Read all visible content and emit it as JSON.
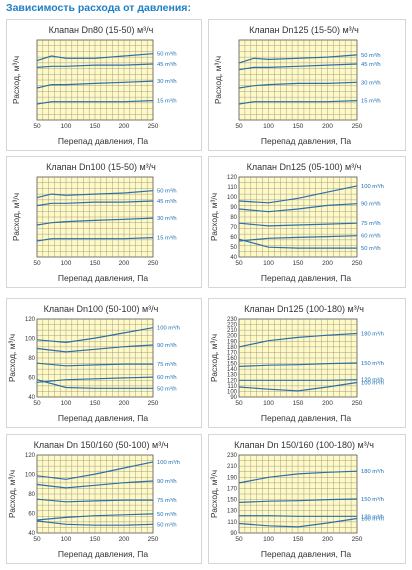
{
  "page_title": "Зависимость расхода от давления:",
  "axis_common": {
    "xlabel": "Перепад давления, Па",
    "ylabel": "Расход, м³/ч"
  },
  "colors": {
    "plot_bg": "#fff9c4",
    "grid": "#8a8a8a",
    "curve": "#2d6fa8",
    "label": "#1f6fb3",
    "title_text": "#333333",
    "page_title": "#1f7fc4"
  },
  "chart_data": [
    {
      "type": "line",
      "title": "Клапан Dn80 (15-50) м³/ч",
      "xlabel": "Перепад давления, Па",
      "ylabel": "Расход, м³/ч",
      "xlim": [
        50,
        250
      ],
      "ylim": [
        0,
        70
      ],
      "xticks": [
        "50",
        "100",
        "150",
        "200",
        "250"
      ],
      "yticks": [],
      "grid": true,
      "series": [
        {
          "name": "50 m³/h",
          "x": [
            50,
            75,
            100,
            150,
            200,
            250
          ],
          "y": [
            52,
            56,
            54,
            54,
            56,
            58
          ]
        },
        {
          "name": "45 m³/h",
          "x": [
            50,
            75,
            100,
            150,
            200,
            250
          ],
          "y": [
            46,
            47,
            47,
            48,
            48,
            49
          ]
        },
        {
          "name": "30 m³/h",
          "x": [
            50,
            75,
            100,
            150,
            200,
            250
          ],
          "y": [
            28,
            31,
            31,
            32,
            33,
            34
          ]
        },
        {
          "name": "15 m³/h",
          "x": [
            50,
            75,
            100,
            150,
            200,
            250
          ],
          "y": [
            14,
            16,
            16,
            16,
            16,
            17
          ]
        }
      ]
    },
    {
      "type": "line",
      "title": "Клапан Dn125 (15-50) м³/ч",
      "xlabel": "Перепад давления, Па",
      "ylabel": "Расход, м³/ч",
      "xlim": [
        50,
        250
      ],
      "ylim": [
        0,
        70
      ],
      "xticks": [
        "50",
        "100",
        "150",
        "200",
        "250"
      ],
      "yticks": [],
      "grid": true,
      "series": [
        {
          "name": "50 m³/h",
          "x": [
            50,
            75,
            100,
            150,
            200,
            250
          ],
          "y": [
            50,
            54,
            53,
            54,
            55,
            57
          ]
        },
        {
          "name": "45 m³/h",
          "x": [
            50,
            75,
            100,
            150,
            200,
            250
          ],
          "y": [
            44,
            46,
            46,
            47,
            48,
            49
          ]
        },
        {
          "name": "30 m³/h",
          "x": [
            50,
            75,
            100,
            150,
            200,
            250
          ],
          "y": [
            28,
            30,
            31,
            32,
            32,
            33
          ]
        },
        {
          "name": "15 m³/h",
          "x": [
            50,
            75,
            100,
            150,
            200,
            250
          ],
          "y": [
            14,
            16,
            16,
            16,
            16,
            17
          ]
        }
      ]
    },
    {
      "type": "line",
      "title": "Клапан Dn100 (15-50) м³/ч",
      "xlabel": "Перепад давления, Па",
      "ylabel": "Расход, м³/ч",
      "xlim": [
        50,
        250
      ],
      "ylim": [
        0,
        70
      ],
      "xticks": [
        "50",
        "100",
        "150",
        "200",
        "250"
      ],
      "yticks": [],
      "grid": true,
      "series": [
        {
          "name": "50 m³/h",
          "x": [
            50,
            75,
            100,
            150,
            200,
            250
          ],
          "y": [
            52,
            55,
            54,
            55,
            56,
            58
          ]
        },
        {
          "name": "45 m³/h",
          "x": [
            50,
            75,
            100,
            150,
            200,
            250
          ],
          "y": [
            45,
            47,
            47,
            48,
            48,
            49
          ]
        },
        {
          "name": "30 m³/h",
          "x": [
            50,
            75,
            100,
            150,
            200,
            250
          ],
          "y": [
            28,
            30,
            31,
            32,
            33,
            34
          ]
        },
        {
          "name": "15 m³/h",
          "x": [
            50,
            75,
            100,
            150,
            200,
            250
          ],
          "y": [
            14,
            16,
            16,
            16,
            16,
            17
          ]
        }
      ]
    },
    {
      "type": "line",
      "title": "Клапан Dn125 (05-100) м³/ч",
      "xlabel": "Перепад давления, Па",
      "ylabel": "Расход, м³/ч",
      "xlim": [
        50,
        250
      ],
      "ylim": [
        40,
        130
      ],
      "xticks": [
        "50",
        "100",
        "150",
        "200",
        "250"
      ],
      "yticks": [
        "40",
        "50",
        "60",
        "70",
        "80",
        "90",
        "100",
        "110",
        "120"
      ],
      "grid": true,
      "series": [
        {
          "name": "100 m³/h",
          "x": [
            50,
            100,
            150,
            200,
            250
          ],
          "y": [
            103,
            101,
            106,
            113,
            120
          ]
        },
        {
          "name": "90 m³/h",
          "x": [
            50,
            100,
            150,
            200,
            250
          ],
          "y": [
            94,
            91,
            94,
            98,
            100
          ]
        },
        {
          "name": "75 m³/h",
          "x": [
            50,
            100,
            150,
            200,
            250
          ],
          "y": [
            78,
            75,
            76,
            77,
            78
          ]
        },
        {
          "name": "60 m³/h",
          "x": [
            50,
            100,
            150,
            200,
            250
          ],
          "y": [
            58,
            61,
            62,
            63,
            64
          ]
        },
        {
          "name": "50 m³/h",
          "x": [
            50,
            100,
            150,
            200,
            250
          ],
          "y": [
            60,
            51,
            50,
            50,
            50
          ]
        }
      ]
    },
    {
      "type": "line",
      "title": "Клапан Dn100 (50-100) м³/ч",
      "xlabel": "Перепад давления, Па",
      "ylabel": "Расход, м³/ч",
      "xlim": [
        50,
        250
      ],
      "ylim": [
        40,
        130
      ],
      "xticks": [
        "50",
        "100",
        "150",
        "200",
        "250"
      ],
      "yticks": [
        "40",
        "60",
        "80",
        "100",
        "120"
      ],
      "grid": true,
      "series": [
        {
          "name": "100 m³/h",
          "x": [
            50,
            100,
            150,
            200,
            250
          ],
          "y": [
            106,
            103,
            108,
            114,
            120
          ]
        },
        {
          "name": "90 m³/h",
          "x": [
            50,
            100,
            150,
            200,
            250
          ],
          "y": [
            96,
            92,
            95,
            98,
            100
          ]
        },
        {
          "name": "75 m³/h",
          "x": [
            50,
            100,
            150,
            200,
            250
          ],
          "y": [
            79,
            76,
            77,
            78,
            78
          ]
        },
        {
          "name": "60 m³/h",
          "x": [
            50,
            100,
            150,
            200,
            250
          ],
          "y": [
            57,
            60,
            61,
            62,
            63
          ]
        },
        {
          "name": "50 m³/h",
          "x": [
            50,
            100,
            150,
            200,
            250
          ],
          "y": [
            60,
            51,
            50,
            50,
            50
          ]
        }
      ]
    },
    {
      "type": "line",
      "title": "Клапан Dn125 (100-180) м³/ч",
      "xlabel": "Перепад давления, Па",
      "ylabel": "Расход, м³/ч",
      "xlim": [
        50,
        250
      ],
      "ylim": [
        90,
        230
      ],
      "xticks": [
        "50",
        "100",
        "150",
        "200",
        "250"
      ],
      "yticks": [
        "90",
        "100",
        "110",
        "120",
        "130",
        "140",
        "150",
        "160",
        "170",
        "180",
        "190",
        "200",
        "210",
        "220",
        "230"
      ],
      "grid": true,
      "series": [
        {
          "name": "180 m³/h",
          "x": [
            50,
            100,
            150,
            200,
            250
          ],
          "y": [
            180,
            191,
            197,
            201,
            204
          ]
        },
        {
          "name": "150 m³/h",
          "x": [
            50,
            100,
            150,
            200,
            250
          ],
          "y": [
            145,
            147,
            148,
            150,
            151
          ]
        },
        {
          "name": "120 m³/h",
          "x": [
            50,
            100,
            150,
            200,
            250
          ],
          "y": [
            120,
            120,
            120,
            120,
            121
          ]
        },
        {
          "name": "100 m³/h",
          "x": [
            50,
            100,
            150,
            200,
            250
          ],
          "y": [
            108,
            104,
            101,
            108,
            116
          ]
        }
      ]
    },
    {
      "type": "line",
      "title": "Клапан Dn 150/160 (50-100) м³/ч",
      "xlabel": "Перепад давления, Па",
      "ylabel": "Расход, м³/ч",
      "xlim": [
        50,
        250
      ],
      "ylim": [
        40,
        130
      ],
      "xticks": [
        "50",
        "100",
        "150",
        "200",
        "250"
      ],
      "yticks": [
        "40",
        "60",
        "80",
        "100",
        "120"
      ],
      "grid": true,
      "series": [
        {
          "name": "100 m³/h",
          "x": [
            50,
            100,
            150,
            200,
            250
          ],
          "y": [
            106,
            102,
            108,
            115,
            122
          ]
        },
        {
          "name": "90 m³/h",
          "x": [
            50,
            100,
            150,
            200,
            250
          ],
          "y": [
            96,
            92,
            95,
            98,
            100
          ]
        },
        {
          "name": "75 m³/h",
          "x": [
            50,
            100,
            150,
            200,
            250
          ],
          "y": [
            79,
            76,
            77,
            78,
            78
          ]
        },
        {
          "name": "50 m³/h",
          "x": [
            50,
            100,
            150,
            200,
            250
          ],
          "y": [
            55,
            58,
            60,
            61,
            62
          ]
        },
        {
          "name": "50 m³/h",
          "x": [
            50,
            100,
            150,
            200,
            250
          ],
          "y": [
            54,
            50,
            49,
            49,
            50
          ]
        }
      ]
    },
    {
      "type": "line",
      "title": "Клапан Dn 150/160 (100-180) м³/ч",
      "xlabel": "Перепад давления, Па",
      "ylabel": "Расход, м³/ч",
      "xlim": [
        50,
        250
      ],
      "ylim": [
        90,
        230
      ],
      "xticks": [
        "50",
        "100",
        "150",
        "200",
        "250"
      ],
      "yticks": [
        "90",
        "110",
        "130",
        "150",
        "170",
        "190",
        "210",
        "230"
      ],
      "grid": true,
      "series": [
        {
          "name": "180 m³/h",
          "x": [
            50,
            100,
            150,
            200,
            250
          ],
          "y": [
            180,
            190,
            196,
            199,
            201
          ]
        },
        {
          "name": "150 m³/h",
          "x": [
            50,
            100,
            150,
            200,
            250
          ],
          "y": [
            145,
            147,
            148,
            150,
            151
          ]
        },
        {
          "name": "120 m³/h",
          "x": [
            50,
            100,
            150,
            200,
            250
          ],
          "y": [
            121,
            121,
            120,
            120,
            120
          ]
        },
        {
          "name": "100 m³/h",
          "x": [
            50,
            100,
            150,
            200,
            250
          ],
          "y": [
            107,
            103,
            101,
            108,
            116
          ]
        }
      ]
    }
  ]
}
